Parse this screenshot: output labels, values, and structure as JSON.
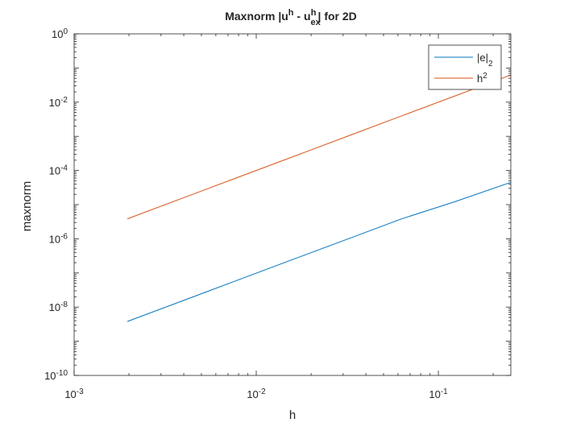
{
  "chart_data": {
    "type": "line",
    "title": {
      "prefix": "Maxnorm |u",
      "sup1": "h",
      "mid": " - u",
      "sub": "ex",
      "sup2": "h",
      "suffix": "| for 2D"
    },
    "xlabel": "h",
    "ylabel": "maxnorm",
    "x_scale": "log",
    "y_scale": "log",
    "xlim": [
      0.001,
      0.25
    ],
    "ylim": [
      1e-10,
      1
    ],
    "x_ticks": [
      {
        "value": 0.001,
        "base": "10",
        "exp": "-3"
      },
      {
        "value": 0.01,
        "base": "10",
        "exp": "-2"
      },
      {
        "value": 0.1,
        "base": "10",
        "exp": "-1"
      }
    ],
    "y_ticks": [
      {
        "value": 1e-10,
        "base": "10",
        "exp": "-10"
      },
      {
        "value": 1e-08,
        "base": "10",
        "exp": "-8"
      },
      {
        "value": 1e-06,
        "base": "10",
        "exp": "-6"
      },
      {
        "value": 0.0001,
        "base": "10",
        "exp": "-4"
      },
      {
        "value": 0.01,
        "base": "10",
        "exp": "-2"
      },
      {
        "value": 1,
        "base": "10",
        "exp": "0"
      }
    ],
    "grid": false,
    "legend_position": "top-right",
    "series": [
      {
        "name": "|e|",
        "name_sub": "2",
        "color": "#0072BD",
        "x": [
          0.00196,
          0.0039,
          0.0078,
          0.0156,
          0.03125,
          0.0625,
          0.125,
          0.25
        ],
        "y": [
          3.8e-09,
          1.5e-08,
          6e-08,
          2.4e-07,
          9.5e-07,
          3.8e-06,
          1.25e-05,
          4.5e-05
        ]
      },
      {
        "name": "h",
        "name_sup": "2",
        "color": "#D95319",
        "x": [
          0.00196,
          0.0039,
          0.0078,
          0.0156,
          0.03125,
          0.0625,
          0.125,
          0.25
        ],
        "y": [
          3.84e-06,
          1.52e-05,
          6.08e-05,
          0.000243,
          0.000977,
          0.00391,
          0.0156,
          0.0625
        ]
      }
    ]
  }
}
